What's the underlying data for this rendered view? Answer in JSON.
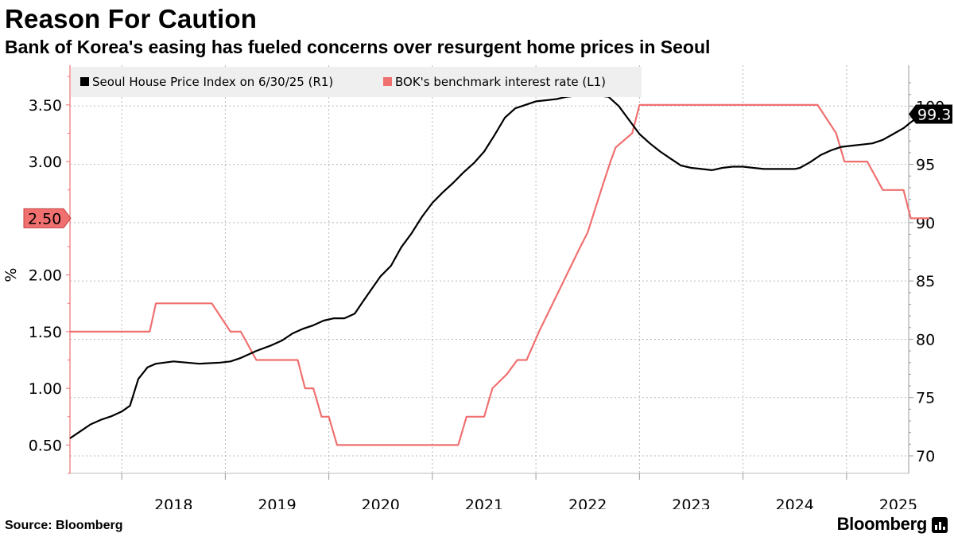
{
  "title": "Reason For Caution",
  "subtitle": "Bank of Korea's easing has fueled concerns over resurgent home prices in Seoul",
  "source": "Source: Bloomberg",
  "brand": "Bloomberg",
  "brand_icon": "bar-chart-icon",
  "chart_data": {
    "type": "line",
    "title": "Reason For Caution",
    "subtitle": "Bank of Korea's easing has fueled concerns over resurgent home prices in Seoul",
    "legend_position": "top-left",
    "grid": true,
    "x_axis": {
      "range": [
        2017.5,
        2025.6
      ],
      "tick_labels": [
        "2018",
        "2019",
        "2020",
        "2021",
        "2022",
        "2023",
        "2024",
        "2025"
      ]
    },
    "left_axis": {
      "label": "%",
      "range": [
        0.25,
        3.85
      ],
      "tick_labels": [
        "0.50",
        "1.00",
        "1.50",
        "2.00",
        "3.00",
        "3.50"
      ]
    },
    "right_axis": {
      "range": [
        68.5,
        103.5
      ],
      "tick_labels": [
        "70",
        "75",
        "80",
        "85",
        "90",
        "95",
        "100"
      ]
    },
    "series": [
      {
        "name": "Seoul House Price Index on 6/30/25 (R1)",
        "axis": "right",
        "color": "#000000",
        "last_value_label": "99.3",
        "points": [
          [
            2017.5,
            71.5
          ],
          [
            2017.6,
            72.1
          ],
          [
            2017.7,
            72.7
          ],
          [
            2017.8,
            73.1
          ],
          [
            2017.9,
            73.4
          ],
          [
            2018.0,
            73.8
          ],
          [
            2018.08,
            74.3
          ],
          [
            2018.16,
            76.6
          ],
          [
            2018.25,
            77.6
          ],
          [
            2018.33,
            77.9
          ],
          [
            2018.5,
            78.1
          ],
          [
            2018.75,
            77.9
          ],
          [
            2018.95,
            78.0
          ],
          [
            2019.05,
            78.1
          ],
          [
            2019.15,
            78.4
          ],
          [
            2019.3,
            79.0
          ],
          [
            2019.45,
            79.5
          ],
          [
            2019.55,
            79.9
          ],
          [
            2019.65,
            80.5
          ],
          [
            2019.75,
            80.9
          ],
          [
            2019.85,
            81.2
          ],
          [
            2019.95,
            81.6
          ],
          [
            2020.05,
            81.8
          ],
          [
            2020.15,
            81.8
          ],
          [
            2020.25,
            82.2
          ],
          [
            2020.35,
            83.5
          ],
          [
            2020.5,
            85.4
          ],
          [
            2020.6,
            86.3
          ],
          [
            2020.7,
            87.9
          ],
          [
            2020.8,
            89.1
          ],
          [
            2020.9,
            90.5
          ],
          [
            2021.0,
            91.7
          ],
          [
            2021.1,
            92.6
          ],
          [
            2021.2,
            93.4
          ],
          [
            2021.3,
            94.3
          ],
          [
            2021.4,
            95.1
          ],
          [
            2021.5,
            96.1
          ],
          [
            2021.6,
            97.5
          ],
          [
            2021.7,
            99.0
          ],
          [
            2021.8,
            99.8
          ],
          [
            2021.9,
            100.1
          ],
          [
            2022.0,
            100.4
          ],
          [
            2022.1,
            100.5
          ],
          [
            2022.2,
            100.6
          ],
          [
            2022.3,
            100.8
          ],
          [
            2022.4,
            100.9
          ],
          [
            2022.5,
            101.0
          ],
          [
            2022.6,
            100.9
          ],
          [
            2022.7,
            100.8
          ],
          [
            2022.8,
            100.0
          ],
          [
            2022.9,
            98.8
          ],
          [
            2023.0,
            97.6
          ],
          [
            2023.1,
            96.8
          ],
          [
            2023.2,
            96.1
          ],
          [
            2023.3,
            95.5
          ],
          [
            2023.4,
            94.9
          ],
          [
            2023.5,
            94.7
          ],
          [
            2023.6,
            94.6
          ],
          [
            2023.7,
            94.5
          ],
          [
            2023.8,
            94.7
          ],
          [
            2023.9,
            94.8
          ],
          [
            2024.0,
            94.8
          ],
          [
            2024.1,
            94.7
          ],
          [
            2024.2,
            94.6
          ],
          [
            2024.3,
            94.6
          ],
          [
            2024.4,
            94.6
          ],
          [
            2024.5,
            94.6
          ],
          [
            2024.55,
            94.7
          ],
          [
            2024.65,
            95.2
          ],
          [
            2024.75,
            95.8
          ],
          [
            2024.85,
            96.2
          ],
          [
            2024.95,
            96.5
          ],
          [
            2025.05,
            96.6
          ],
          [
            2025.15,
            96.7
          ],
          [
            2025.25,
            96.8
          ],
          [
            2025.35,
            97.1
          ],
          [
            2025.45,
            97.6
          ],
          [
            2025.55,
            98.1
          ],
          [
            2025.62,
            98.6
          ],
          [
            2025.68,
            99.0
          ],
          [
            2025.72,
            99.3
          ]
        ]
      },
      {
        "name": "BOK's benchmark interest rate (L1)",
        "axis": "left",
        "color": "#f07070",
        "last_value_label": "2.50",
        "points": [
          [
            2017.5,
            1.5
          ],
          [
            2018.27,
            1.5
          ],
          [
            2018.33,
            1.75
          ],
          [
            2018.87,
            1.75
          ],
          [
            2019.05,
            1.5
          ],
          [
            2019.15,
            1.5
          ],
          [
            2019.3,
            1.25
          ],
          [
            2019.7,
            1.25
          ],
          [
            2019.77,
            1.0
          ],
          [
            2019.85,
            1.0
          ],
          [
            2019.93,
            0.75
          ],
          [
            2020.0,
            0.75
          ],
          [
            2020.08,
            0.5
          ],
          [
            2021.25,
            0.5
          ],
          [
            2021.33,
            0.75
          ],
          [
            2021.5,
            0.75
          ],
          [
            2021.58,
            1.0
          ],
          [
            2021.72,
            1.125
          ],
          [
            2021.82,
            1.25
          ],
          [
            2021.91,
            1.25
          ],
          [
            2022.03,
            1.5
          ],
          [
            2022.43,
            2.25
          ],
          [
            2022.5,
            2.375
          ],
          [
            2022.63,
            2.75
          ],
          [
            2022.72,
            3.0
          ],
          [
            2022.77,
            3.125
          ],
          [
            2022.93,
            3.25
          ],
          [
            2023.0,
            3.5
          ],
          [
            2024.72,
            3.5
          ],
          [
            2024.9,
            3.25
          ],
          [
            2024.98,
            3.0
          ],
          [
            2025.2,
            3.0
          ],
          [
            2025.35,
            2.75
          ],
          [
            2025.55,
            2.75
          ],
          [
            2025.62,
            2.5
          ],
          [
            2025.8,
            2.5
          ]
        ]
      }
    ]
  }
}
